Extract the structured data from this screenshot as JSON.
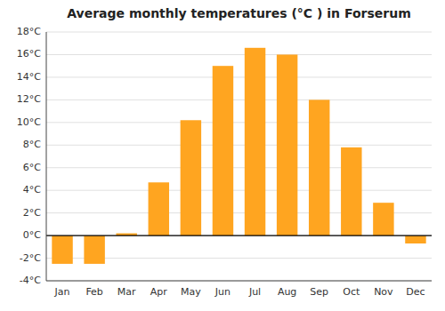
{
  "chart_data": {
    "type": "bar",
    "title": "Average monthly temperatures (°C ) in Forserum",
    "categories": [
      "Jan",
      "Feb",
      "Mar",
      "Apr",
      "May",
      "Jun",
      "Jul",
      "Aug",
      "Sep",
      "Oct",
      "Nov",
      "Dec"
    ],
    "values": [
      -2.5,
      -2.5,
      0.2,
      4.7,
      10.2,
      15.0,
      16.6,
      16.0,
      12.0,
      7.8,
      2.9,
      -0.7
    ],
    "color": "#FFA520",
    "ylim": [
      -4,
      18
    ],
    "yticks": [
      {
        "value": -4,
        "label": "-4°C"
      },
      {
        "value": -2,
        "label": "-2°C"
      },
      {
        "value": 0,
        "label": "0°C"
      },
      {
        "value": 2,
        "label": "2°C"
      },
      {
        "value": 4,
        "label": "4°C"
      },
      {
        "value": 6,
        "label": "6°C"
      },
      {
        "value": 8,
        "label": "8°C"
      },
      {
        "value": 10,
        "label": "10°C"
      },
      {
        "value": 12,
        "label": "12°C"
      },
      {
        "value": 14,
        "label": "14°C"
      },
      {
        "value": 16,
        "label": "16°C"
      },
      {
        "value": 18,
        "label": "18°C"
      }
    ],
    "grid": true
  }
}
